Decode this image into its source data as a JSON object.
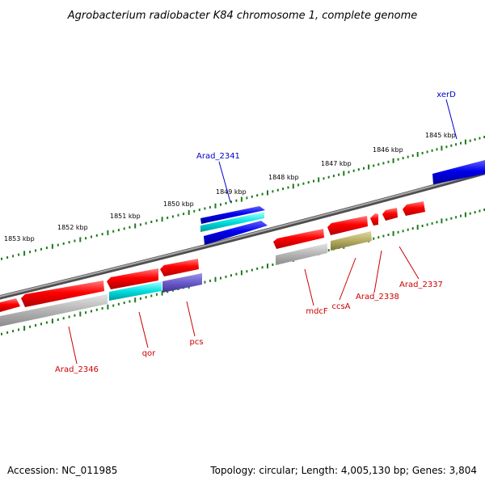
{
  "title": "Agrobacterium radiobacter K84 chromosome 1, complete genome",
  "footer": {
    "accession": "Accession: NC_011985",
    "topology": "Topology: circular; Length: 4,005,130 bp; Genes: 3,804"
  },
  "colors": {
    "backbone": "#808080",
    "tick": "#1e7a1e",
    "forward_label": "#0000cc",
    "reverse_label": "#cc0000"
  },
  "kbp_labels": [
    "1853 kbp",
    "1852 kbp",
    "1851 kbp",
    "1850 kbp",
    "1849 kbp",
    "1848 kbp",
    "1847 kbp",
    "1846 kbp",
    "1845 kbp"
  ],
  "gene_labels": {
    "xerD": "xerD",
    "arad_2341": "Arad_2341",
    "arad_2346": "Arad_2346",
    "qor": "qor",
    "pcs": "pcs",
    "mdcF": "mdcF",
    "ccsA": "ccsA",
    "arad_2338": "Arad_2338",
    "arad_2337": "Arad_2337"
  }
}
